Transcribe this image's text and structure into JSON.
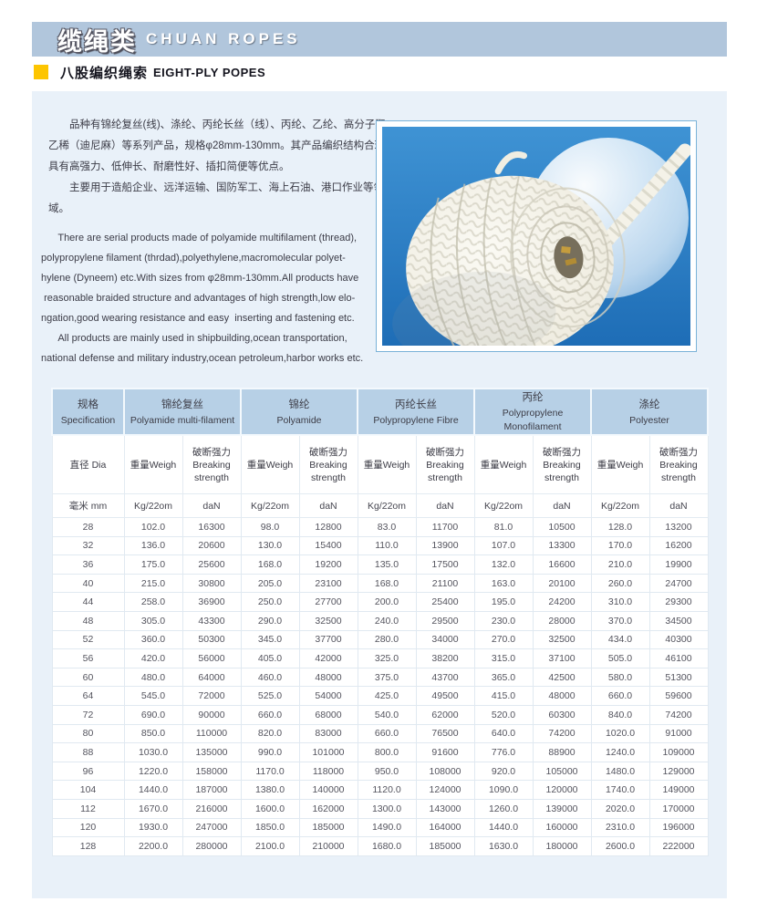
{
  "header": {
    "title_zh": "缆绳类",
    "title_en": "CHUAN ROPES"
  },
  "section": {
    "title_zh": "八股编织绳索",
    "title_en": "EIGHT-PLY POPES"
  },
  "intro": {
    "zh_lines": [
      "　　品种有锦纶复丝(线)、涤纶、丙纶长丝（线）、丙纶、乙纶、高分子聚",
      "乙稀（迪尼麻）等系列产品，规格φ28mm-130mm。其产品编织结构合理，",
      "具有高强力、低伸长、耐磨性好、插扣简便等优点。",
      "　　主要用于造船企业、远洋运输、国防军工、海上石油、港口作业等领域。"
    ],
    "en_lines": [
      "      There are serial products made of polyamide multifilament (thread),",
      "polypropylene filament (thrdad),polyethylene,macromolecular polyet-",
      "hylene (Dyneem) etc.With sizes from φ28mm-130mm.All products have",
      " reasonable braided structure and advantages of high strength,low elo-",
      "ngation,good wearing resistance and easy  inserting and fastening etc.",
      "      All products are mainly used in shipbuilding,ocean transportation,",
      "national defense and military industry,ocean petroleum,harbor works etc."
    ]
  },
  "colors": {
    "band": "#b1c6dc",
    "yellow": "#fdc500",
    "panel": "#e9f1f9",
    "thead": "#b7d0e6",
    "photo_blue": "#2b82c8"
  },
  "table": {
    "groups": [
      {
        "zh": "规格",
        "en": "Specification"
      },
      {
        "zh": "锦纶复丝",
        "en": "Polyamide multi-filament"
      },
      {
        "zh": "锦纶",
        "en": "Polyamide"
      },
      {
        "zh": "丙纶长丝",
        "en": "Polypropylene Fibre"
      },
      {
        "zh": "丙纶",
        "en": "Polypropylene Monofilament"
      },
      {
        "zh": "涤纶",
        "en": "Polyester"
      }
    ],
    "sub": {
      "dia": "直径 Dia",
      "weight": "重量Weigh",
      "strength_zh": "破断强力",
      "strength_en": "Breaking strength"
    },
    "units": {
      "dia": "毫米 mm",
      "weight": "Kg/22om",
      "strength": "daN"
    },
    "rows": [
      [
        "28",
        "102.0",
        "16300",
        "98.0",
        "12800",
        "83.0",
        "11700",
        "81.0",
        "10500",
        "128.0",
        "13200"
      ],
      [
        "32",
        "136.0",
        "20600",
        "130.0",
        "15400",
        "110.0",
        "13900",
        "107.0",
        "13300",
        "170.0",
        "16200"
      ],
      [
        "36",
        "175.0",
        "25600",
        "168.0",
        "19200",
        "135.0",
        "17500",
        "132.0",
        "16600",
        "210.0",
        "19900"
      ],
      [
        "40",
        "215.0",
        "30800",
        "205.0",
        "23100",
        "168.0",
        "21100",
        "163.0",
        "20100",
        "260.0",
        "24700"
      ],
      [
        "44",
        "258.0",
        "36900",
        "250.0",
        "27700",
        "200.0",
        "25400",
        "195.0",
        "24200",
        "310.0",
        "29300"
      ],
      [
        "48",
        "305.0",
        "43300",
        "290.0",
        "32500",
        "240.0",
        "29500",
        "230.0",
        "28000",
        "370.0",
        "34500"
      ],
      [
        "52",
        "360.0",
        "50300",
        "345.0",
        "37700",
        "280.0",
        "34000",
        "270.0",
        "32500",
        "434.0",
        "40300"
      ],
      [
        "56",
        "420.0",
        "56000",
        "405.0",
        "42000",
        "325.0",
        "38200",
        "315.0",
        "37100",
        "505.0",
        "46100"
      ],
      [
        "60",
        "480.0",
        "64000",
        "460.0",
        "48000",
        "375.0",
        "43700",
        "365.0",
        "42500",
        "580.0",
        "51300"
      ],
      [
        "64",
        "545.0",
        "72000",
        "525.0",
        "54000",
        "425.0",
        "49500",
        "415.0",
        "48000",
        "660.0",
        "59600"
      ],
      [
        "72",
        "690.0",
        "90000",
        "660.0",
        "68000",
        "540.0",
        "62000",
        "520.0",
        "60300",
        "840.0",
        "74200"
      ],
      [
        "80",
        "850.0",
        "110000",
        "820.0",
        "83000",
        "660.0",
        "76500",
        "640.0",
        "74200",
        "1020.0",
        "91000"
      ],
      [
        "88",
        "1030.0",
        "135000",
        "990.0",
        "101000",
        "800.0",
        "91600",
        "776.0",
        "88900",
        "1240.0",
        "109000"
      ],
      [
        "96",
        "1220.0",
        "158000",
        "1170.0",
        "118000",
        "950.0",
        "108000",
        "920.0",
        "105000",
        "1480.0",
        "129000"
      ],
      [
        "104",
        "1440.0",
        "187000",
        "1380.0",
        "140000",
        "1120.0",
        "124000",
        "1090.0",
        "120000",
        "1740.0",
        "149000"
      ],
      [
        "112",
        "1670.0",
        "216000",
        "1600.0",
        "162000",
        "1300.0",
        "143000",
        "1260.0",
        "139000",
        "2020.0",
        "170000"
      ],
      [
        "120",
        "1930.0",
        "247000",
        "1850.0",
        "185000",
        "1490.0",
        "164000",
        "1440.0",
        "160000",
        "2310.0",
        "196000"
      ],
      [
        "128",
        "2200.0",
        "280000",
        "2100.0",
        "210000",
        "1680.0",
        "185000",
        "1630.0",
        "180000",
        "2600.0",
        "222000"
      ]
    ]
  }
}
